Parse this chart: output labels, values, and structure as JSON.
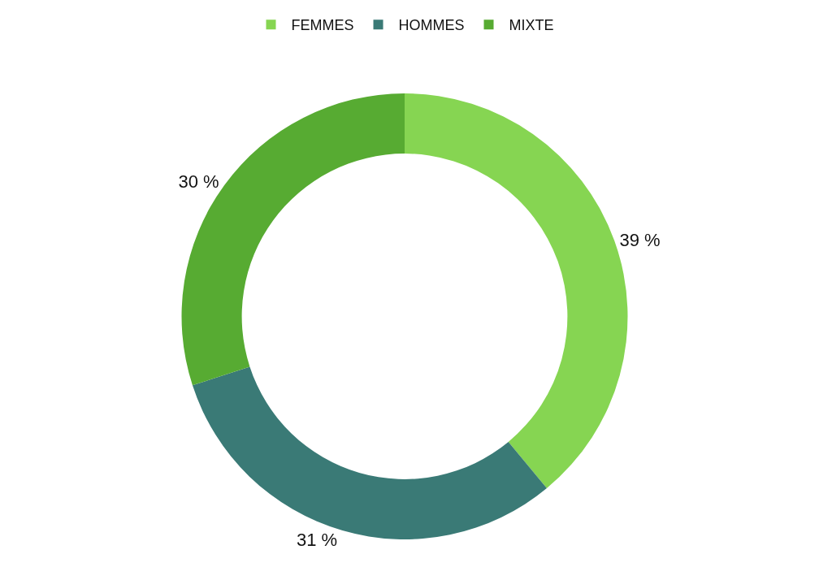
{
  "chart_data": {
    "type": "donut",
    "categories": [
      "FEMMES",
      "HOMMES",
      "MIXTE"
    ],
    "values": [
      39,
      31,
      30
    ],
    "colors": [
      "#86d552",
      "#3a7a76",
      "#57ab32"
    ],
    "value_labels": [
      "39 %",
      "31 %",
      "30 %"
    ],
    "legend": "top"
  }
}
